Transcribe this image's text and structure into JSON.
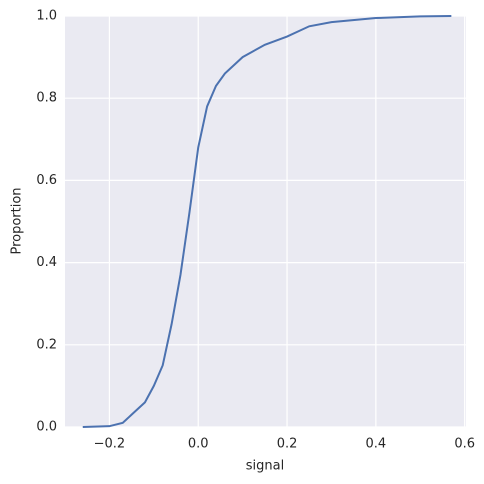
{
  "chart_data": {
    "type": "line",
    "xlabel": "signal",
    "ylabel": "Proportion",
    "x": [
      -0.26,
      -0.2,
      -0.17,
      -0.15,
      -0.12,
      -0.1,
      -0.08,
      -0.06,
      -0.04,
      -0.02,
      0.0,
      0.02,
      0.04,
      0.06,
      0.1,
      0.15,
      0.2,
      0.25,
      0.3,
      0.4,
      0.5,
      0.57
    ],
    "series": [
      {
        "color": "#4c72b0",
        "values": [
          0,
          0.002,
          0.01,
          0.03,
          0.06,
          0.1,
          0.15,
          0.25,
          0.37,
          0.52,
          0.68,
          0.78,
          0.83,
          0.86,
          0.9,
          0.93,
          0.95,
          0.975,
          0.985,
          0.995,
          0.999,
          1.0
        ]
      }
    ],
    "xlim": [
      -0.3,
      0.603
    ],
    "ylim": [
      0,
      1
    ],
    "xticks": [
      {
        "value": -0.2,
        "label": "−0.2"
      },
      {
        "value": 0,
        "label": "0.0"
      },
      0.2,
      0.4,
      0.6
    ],
    "yticks": [
      {
        "value": 0,
        "label": "0.0"
      },
      0.2,
      0.4,
      0.6,
      0.8,
      {
        "value": 1,
        "label": "1.0"
      }
    ],
    "grid": true,
    "background": "#eaeaf2"
  }
}
